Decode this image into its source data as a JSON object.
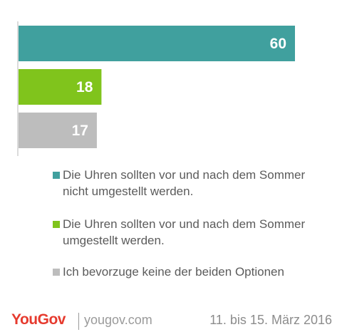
{
  "chart_data": {
    "type": "bar",
    "orientation": "horizontal",
    "categories": [
      "Die Uhren sollten vor und nach dem Sommer nicht umgestellt werden.",
      "Die Uhren sollten vor und nach dem Sommer umgestellt werden.",
      "Ich bevorzuge keine der beiden Optionen"
    ],
    "values": [
      60,
      18,
      17
    ],
    "value_labels": [
      "60",
      "18",
      "17"
    ],
    "colors": [
      "#40a09e",
      "#80c41c",
      "#bdbdbd"
    ],
    "xlim": [
      0,
      60
    ],
    "grid": false,
    "legend_position": "bottom"
  },
  "legend": {
    "items": [
      {
        "label": "Die Uhren sollten vor und nach dem Sommer nicht umgestellt werden.",
        "color": "#40a09e"
      },
      {
        "label": "Die Uhren sollten vor und nach dem Sommer umgestellt werden.",
        "color": "#80c41c"
      },
      {
        "label": "Ich bevorzuge keine der beiden Optionen",
        "color": "#bdbdbd"
      }
    ]
  },
  "footer": {
    "logo": "YouGov",
    "site": "yougov.com",
    "date": "11. bis 15. März 2016"
  },
  "colors": {
    "brand_red": "#e63a2e",
    "text_gray": "#5b5b5b"
  }
}
